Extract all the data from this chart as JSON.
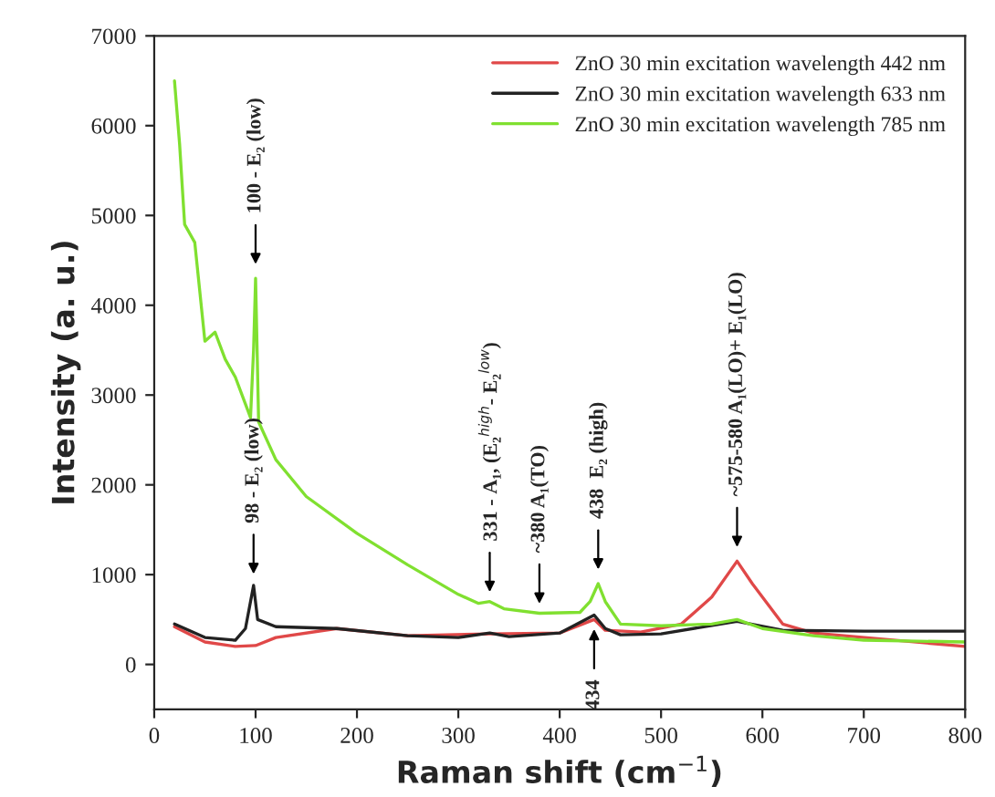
{
  "chart_data": {
    "type": "line",
    "xlabel": "Raman shift (cm$^{−1}$)",
    "ylabel": "Intensity (a. u.)",
    "xlim": [
      0,
      800
    ],
    "xticks": [
      0,
      100,
      200,
      300,
      400,
      500,
      600,
      700,
      800
    ],
    "ylim": [
      -500,
      7000
    ],
    "yticks": [
      0,
      1000,
      2000,
      3000,
      4000,
      5000,
      6000,
      7000
    ],
    "legend": "top right",
    "grid": false,
    "marker": "none",
    "line_style": "solid",
    "series": [
      {
        "name": "ZnO 30 min excitation wavelength 442 nm",
        "color": "#e04848",
        "x": [
          20,
          50,
          80,
          100,
          120,
          180,
          250,
          331,
          400,
          434,
          445,
          480,
          520,
          550,
          575,
          590,
          620,
          650,
          800
        ],
        "values": [
          420,
          250,
          200,
          210,
          300,
          400,
          320,
          340,
          350,
          500,
          380,
          360,
          450,
          750,
          1150,
          900,
          450,
          350,
          200
        ]
      },
      {
        "name": "ZnO 30 min excitation wavelength 633 nm",
        "color": "#222222",
        "x": [
          20,
          50,
          80,
          90,
          98,
          102,
          120,
          180,
          250,
          300,
          331,
          350,
          400,
          434,
          445,
          460,
          500,
          575,
          620,
          700,
          800
        ],
        "values": [
          450,
          300,
          270,
          400,
          880,
          500,
          420,
          400,
          320,
          300,
          350,
          310,
          350,
          550,
          400,
          330,
          340,
          480,
          380,
          370,
          370
        ]
      },
      {
        "name": "ZnO 30 min excitation wavelength 785 nm",
        "color": "#80e030",
        "x": [
          20,
          25,
          30,
          40,
          50,
          60,
          70,
          80,
          90,
          95,
          98,
          100,
          103,
          120,
          150,
          200,
          250,
          300,
          320,
          331,
          345,
          380,
          420,
          430,
          438,
          445,
          460,
          500,
          550,
          575,
          600,
          650,
          700,
          800
        ],
        "values": [
          6500,
          5800,
          4900,
          4700,
          3600,
          3700,
          3400,
          3200,
          2900,
          2750,
          3500,
          4300,
          2700,
          2280,
          1870,
          1460,
          1110,
          780,
          680,
          700,
          620,
          570,
          580,
          700,
          900,
          700,
          450,
          430,
          450,
          500,
          400,
          320,
          270,
          250
        ]
      }
    ],
    "annotations": [
      {
        "text": "100 - E₂ (low)",
        "x": 100,
        "y": 4400
      },
      {
        "text": "98 - E₂ (low)",
        "x": 98,
        "y": 950
      },
      {
        "text": "331 - A₁, (E₂$^{high}$- E₂$^{low}$)",
        "x": 331,
        "y": 750
      },
      {
        "text": "~380 A₁(TO)",
        "x": 380,
        "y": 620
      },
      {
        "text": "438  E₂ (high)",
        "x": 438,
        "y": 1000
      },
      {
        "text": "434",
        "x": 434,
        "y": 450
      },
      {
        "text": "~575-580 A₁(LO)+ E₁(LO)",
        "x": 575,
        "y": 1250
      }
    ]
  }
}
